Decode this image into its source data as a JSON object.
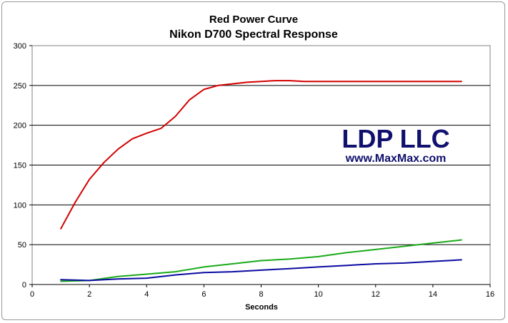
{
  "chart_data": {
    "type": "line",
    "title": "Red Power Curve",
    "subtitle": "Nikon D700 Spectral Response",
    "xlabel": "Seconds",
    "ylabel": "",
    "xlim": [
      0,
      16
    ],
    "ylim": [
      0,
      300
    ],
    "xticks": [
      0,
      2,
      4,
      6,
      8,
      10,
      12,
      14,
      16
    ],
    "yticks": [
      0,
      50,
      100,
      150,
      200,
      250,
      300
    ],
    "grid": "horizontal",
    "legend": "none",
    "watermark": {
      "line1": "LDP LLC",
      "line2": "www.MaxMax.com",
      "color": "#10106e"
    },
    "series": [
      {
        "color": "#d40000",
        "x": [
          1,
          1.5,
          2,
          2.5,
          3,
          3.5,
          4,
          4.5,
          5,
          5.5,
          6,
          6.5,
          7,
          7.5,
          8,
          8.5,
          9,
          9.5,
          10,
          11,
          12,
          13,
          14,
          15
        ],
        "y": [
          70,
          103,
          132,
          153,
          170,
          183,
          190,
          196,
          211,
          232,
          245,
          250,
          252,
          254,
          255,
          256,
          256,
          255,
          255,
          255,
          255,
          255,
          255,
          255
        ]
      },
      {
        "color": "#1aaa1a",
        "x": [
          1,
          2,
          3,
          4,
          5,
          5.5,
          6,
          7,
          8,
          9,
          10,
          11,
          12,
          13,
          14,
          15
        ],
        "y": [
          4,
          5,
          10,
          13,
          16,
          19,
          22,
          26,
          30,
          32,
          35,
          40,
          44,
          48,
          52,
          56
        ]
      },
      {
        "color": "#0a0aa0",
        "x": [
          1,
          2,
          3,
          4,
          5,
          6,
          7,
          8,
          9,
          10,
          11,
          12,
          13,
          14,
          15
        ],
        "y": [
          6,
          5,
          7,
          8,
          12,
          15,
          16,
          18,
          20,
          22,
          24,
          26,
          27,
          29,
          31
        ]
      }
    ]
  }
}
